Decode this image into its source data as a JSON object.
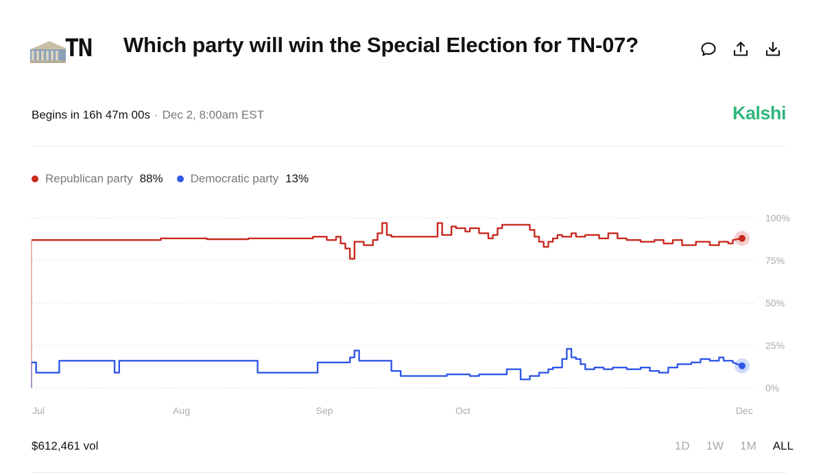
{
  "header": {
    "title": "Which party will win the Special Election for TN-07?",
    "thumbnail_text": "TN",
    "actions": [
      {
        "name": "comment-icon"
      },
      {
        "name": "share-icon"
      },
      {
        "name": "download-icon"
      }
    ]
  },
  "status": {
    "begins": "Begins in 16h 47m 00s",
    "separator": "·",
    "date": "Dec 2, 8:00am EST"
  },
  "brand": {
    "name": "Kalshi",
    "color": "#2fb67c"
  },
  "legend": [
    {
      "name": "Republican party",
      "value": "88%",
      "color": "#c8281e"
    },
    {
      "name": "Democratic party",
      "value": "13%",
      "color": "#2f56e6"
    }
  ],
  "footer": {
    "volume": "$612,461 vol",
    "ranges": [
      "1D",
      "1W",
      "1M",
      "ALL"
    ],
    "active_range": "ALL"
  },
  "chart_data": {
    "type": "line",
    "title": "",
    "xlabel": "",
    "ylabel": "",
    "ylim": [
      0,
      100
    ],
    "y_ticks": [
      "100%",
      "75%",
      "50%",
      "25%",
      "0%"
    ],
    "x_ticks": [
      "Jul",
      "Aug",
      "Sep",
      "Oct",
      "Dec"
    ],
    "grid": true,
    "x_range": [
      "Jul 1",
      "Dec 2"
    ],
    "series": [
      {
        "name": "Republican party",
        "color": "#c8281e",
        "points": [
          [
            "Jul 1",
            0
          ],
          [
            "Jul 1",
            87
          ],
          [
            "Jul 29",
            87
          ],
          [
            "Jul 29",
            88
          ],
          [
            "Aug 8",
            88
          ],
          [
            "Aug 8",
            87.5
          ],
          [
            "Aug 17",
            87.5
          ],
          [
            "Aug 17",
            88
          ],
          [
            "Aug 31",
            88
          ],
          [
            "Aug 31",
            89
          ],
          [
            "Sep 3",
            89
          ],
          [
            "Sep 3",
            87
          ],
          [
            "Sep 5",
            87
          ],
          [
            "Sep 5",
            89
          ],
          [
            "Sep 6",
            89
          ],
          [
            "Sep 6",
            85
          ],
          [
            "Sep 7",
            85
          ],
          [
            "Sep 7",
            82
          ],
          [
            "Sep 8",
            82
          ],
          [
            "Sep 8",
            76
          ],
          [
            "Sep 9",
            76
          ],
          [
            "Sep 9",
            86
          ],
          [
            "Sep 11",
            86
          ],
          [
            "Sep 11",
            84
          ],
          [
            "Sep 13",
            84
          ],
          [
            "Sep 13",
            87
          ],
          [
            "Sep 14",
            87
          ],
          [
            "Sep 14",
            91
          ],
          [
            "Sep 15",
            91
          ],
          [
            "Sep 15",
            97
          ],
          [
            "Sep 16",
            97
          ],
          [
            "Sep 16",
            90
          ],
          [
            "Sep 17",
            90
          ],
          [
            "Sep 17",
            89
          ],
          [
            "Sep 27",
            89
          ],
          [
            "Sep 27",
            97
          ],
          [
            "Sep 28",
            97
          ],
          [
            "Sep 28",
            90
          ],
          [
            "Sep 30",
            90
          ],
          [
            "Sep 30",
            95
          ],
          [
            "Oct 1",
            95
          ],
          [
            "Oct 1",
            94
          ],
          [
            "Oct 3",
            94
          ],
          [
            "Oct 3",
            92
          ],
          [
            "Oct 4",
            92
          ],
          [
            "Oct 4",
            94
          ],
          [
            "Oct 6",
            94
          ],
          [
            "Oct 6",
            91
          ],
          [
            "Oct 8",
            91
          ],
          [
            "Oct 8",
            88
          ],
          [
            "Oct 9",
            88
          ],
          [
            "Oct 9",
            90
          ],
          [
            "Oct 10",
            90
          ],
          [
            "Oct 10",
            94
          ],
          [
            "Oct 11",
            94
          ],
          [
            "Oct 11",
            96
          ],
          [
            "Oct 17",
            96
          ],
          [
            "Oct 17",
            93
          ],
          [
            "Oct 18",
            93
          ],
          [
            "Oct 18",
            89
          ],
          [
            "Oct 19",
            89
          ],
          [
            "Oct 19",
            86
          ],
          [
            "Oct 20",
            86
          ],
          [
            "Oct 20",
            83
          ],
          [
            "Oct 21",
            83
          ],
          [
            "Oct 21",
            86
          ],
          [
            "Oct 22",
            86
          ],
          [
            "Oct 22",
            88
          ],
          [
            "Oct 23",
            88
          ],
          [
            "Oct 23",
            90
          ],
          [
            "Oct 24",
            90
          ],
          [
            "Oct 24",
            89
          ],
          [
            "Oct 26",
            89
          ],
          [
            "Oct 26",
            91
          ],
          [
            "Oct 27",
            91
          ],
          [
            "Oct 27",
            89
          ],
          [
            "Oct 29",
            89
          ],
          [
            "Oct 29",
            90
          ],
          [
            "Nov 1",
            90
          ],
          [
            "Nov 1",
            88
          ],
          [
            "Nov 3",
            88
          ],
          [
            "Nov 3",
            91
          ],
          [
            "Nov 5",
            91
          ],
          [
            "Nov 5",
            88
          ],
          [
            "Nov 7",
            88
          ],
          [
            "Nov 7",
            87
          ],
          [
            "Nov 10",
            87
          ],
          [
            "Nov 10",
            86
          ],
          [
            "Nov 13",
            86
          ],
          [
            "Nov 13",
            87
          ],
          [
            "Nov 15",
            87
          ],
          [
            "Nov 15",
            85
          ],
          [
            "Nov 17",
            85
          ],
          [
            "Nov 17",
            87
          ],
          [
            "Nov 19",
            87
          ],
          [
            "Nov 19",
            84
          ],
          [
            "Nov 22",
            84
          ],
          [
            "Nov 22",
            86
          ],
          [
            "Nov 25",
            86
          ],
          [
            "Nov 25",
            84
          ],
          [
            "Nov 27",
            84
          ],
          [
            "Nov 27",
            86
          ],
          [
            "Nov 29",
            86
          ],
          [
            "Nov 29",
            85
          ],
          [
            "Nov 30",
            85
          ],
          [
            "Nov 30",
            87
          ],
          [
            "Dec 2",
            88
          ]
        ]
      },
      {
        "name": "Democratic party",
        "color": "#2f56e6",
        "points": [
          [
            "Jul 1",
            0
          ],
          [
            "Jul 1",
            15
          ],
          [
            "Jul 2",
            15
          ],
          [
            "Jul 2",
            9
          ],
          [
            "Jul 7",
            9
          ],
          [
            "Jul 7",
            16
          ],
          [
            "Jul 19",
            16
          ],
          [
            "Jul 19",
            9
          ],
          [
            "Jul 20",
            9
          ],
          [
            "Jul 20",
            16
          ],
          [
            "Aug 19",
            16
          ],
          [
            "Aug 19",
            9
          ],
          [
            "Sep 1",
            9
          ],
          [
            "Sep 1",
            15
          ],
          [
            "Sep 8",
            15
          ],
          [
            "Sep 8",
            18
          ],
          [
            "Sep 9",
            18
          ],
          [
            "Sep 9",
            22
          ],
          [
            "Sep 10",
            22
          ],
          [
            "Sep 10",
            16
          ],
          [
            "Sep 17",
            16
          ],
          [
            "Sep 17",
            10
          ],
          [
            "Sep 19",
            10
          ],
          [
            "Sep 19",
            7
          ],
          [
            "Sep 29",
            7
          ],
          [
            "Sep 29",
            8
          ],
          [
            "Oct 4",
            8
          ],
          [
            "Oct 4",
            7
          ],
          [
            "Oct 6",
            7
          ],
          [
            "Oct 6",
            8
          ],
          [
            "Oct 12",
            8
          ],
          [
            "Oct 12",
            11
          ],
          [
            "Oct 15",
            11
          ],
          [
            "Oct 15",
            5
          ],
          [
            "Oct 17",
            5
          ],
          [
            "Oct 17",
            7
          ],
          [
            "Oct 19",
            7
          ],
          [
            "Oct 19",
            9
          ],
          [
            "Oct 21",
            9
          ],
          [
            "Oct 21",
            11
          ],
          [
            "Oct 22",
            11
          ],
          [
            "Oct 22",
            12
          ],
          [
            "Oct 24",
            12
          ],
          [
            "Oct 24",
            17
          ],
          [
            "Oct 25",
            17
          ],
          [
            "Oct 25",
            23
          ],
          [
            "Oct 26",
            23
          ],
          [
            "Oct 26",
            18
          ],
          [
            "Oct 27",
            18
          ],
          [
            "Oct 27",
            17
          ],
          [
            "Oct 28",
            17
          ],
          [
            "Oct 28",
            14
          ],
          [
            "Oct 29",
            14
          ],
          [
            "Oct 29",
            11
          ],
          [
            "Oct 31",
            11
          ],
          [
            "Oct 31",
            12
          ],
          [
            "Nov 2",
            12
          ],
          [
            "Nov 2",
            11
          ],
          [
            "Nov 4",
            11
          ],
          [
            "Nov 4",
            12
          ],
          [
            "Nov 7",
            12
          ],
          [
            "Nov 7",
            11
          ],
          [
            "Nov 10",
            11
          ],
          [
            "Nov 10",
            12
          ],
          [
            "Nov 12",
            12
          ],
          [
            "Nov 12",
            10
          ],
          [
            "Nov 14",
            10
          ],
          [
            "Nov 14",
            9
          ],
          [
            "Nov 16",
            9
          ],
          [
            "Nov 16",
            12
          ],
          [
            "Nov 18",
            12
          ],
          [
            "Nov 18",
            14
          ],
          [
            "Nov 21",
            14
          ],
          [
            "Nov 21",
            15
          ],
          [
            "Nov 23",
            15
          ],
          [
            "Nov 23",
            17
          ],
          [
            "Nov 25",
            17
          ],
          [
            "Nov 25",
            16
          ],
          [
            "Nov 27",
            16
          ],
          [
            "Nov 27",
            18
          ],
          [
            "Nov 28",
            18
          ],
          [
            "Nov 28",
            16
          ],
          [
            "Nov 30",
            16
          ],
          [
            "Nov 30",
            15
          ],
          [
            "Dec 2",
            13
          ]
        ]
      }
    ]
  }
}
